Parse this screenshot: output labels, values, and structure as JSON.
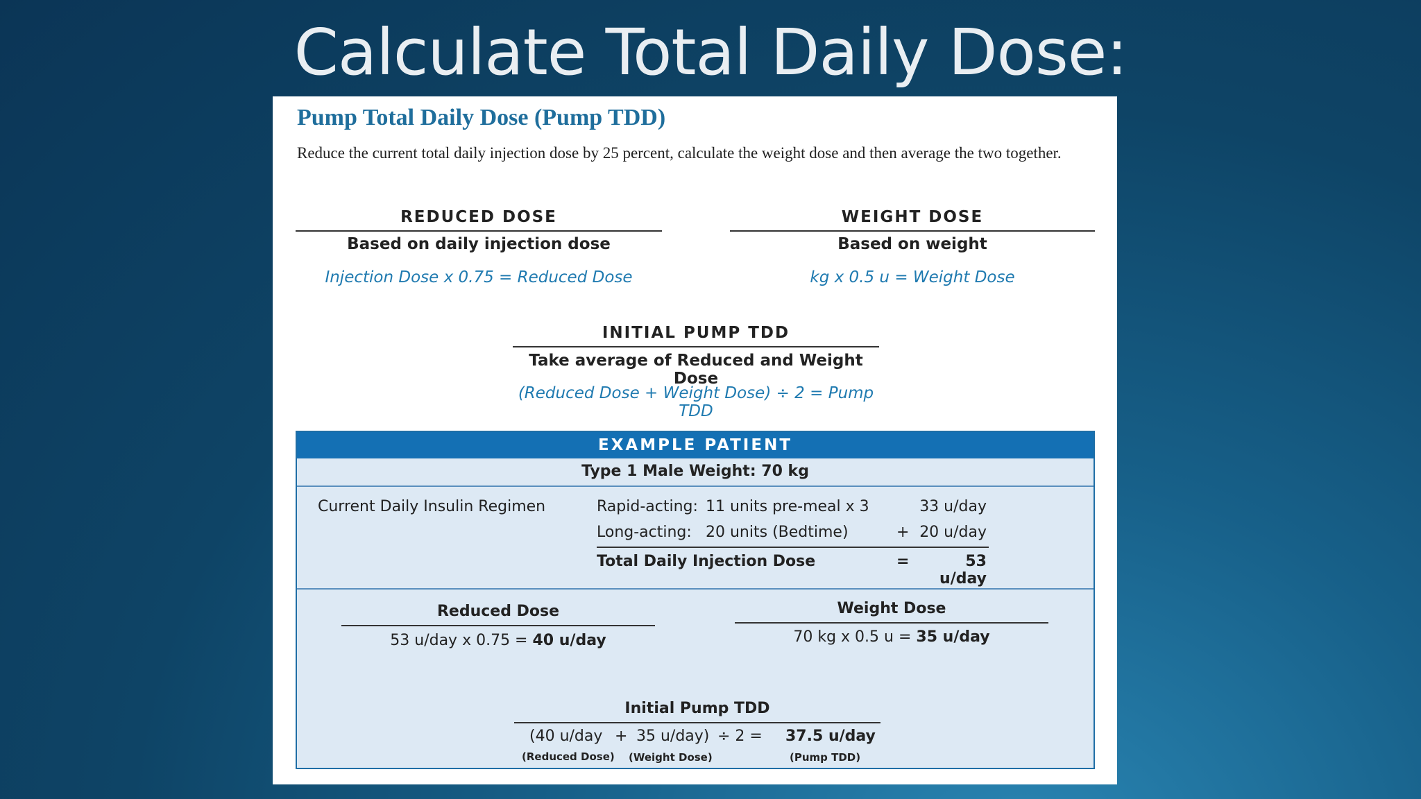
{
  "slide": {
    "title": "Calculate Total Daily Dose:"
  },
  "panel": {
    "title": "Pump Total Daily Dose (Pump TDD)",
    "intro": "Reduce the current total daily injection dose by 25 percent, calculate the weight dose and then average the two together.",
    "reduced": {
      "header": "REDUCED DOSE",
      "subtitle": "Based on daily injection dose",
      "formula": "Injection Dose x 0.75 = Reduced Dose"
    },
    "weight": {
      "header": "WEIGHT DOSE",
      "subtitle": "Based on weight",
      "formula": "kg x 0.5 u = Weight Dose"
    },
    "initial": {
      "header": "INITIAL PUMP TDD",
      "subtitle": "Take average of Reduced and Weight Dose",
      "formula": "(Reduced Dose + Weight Dose) ÷ 2 = Pump TDD"
    }
  },
  "example": {
    "header": "EXAMPLE PATIENT",
    "patient": "Type 1 Male   Weight: 70 kg",
    "regimen_label": "Current Daily Insulin Regimen",
    "rows": [
      {
        "label": "Rapid-acting:",
        "detail": "11 units pre-meal x 3",
        "op": "",
        "value": "33 u/day"
      },
      {
        "label": "Long-acting:",
        "detail": "20 units (Bedtime)",
        "op": "+",
        "value": "20 u/day"
      }
    ],
    "total": {
      "label": "Total Daily Injection Dose",
      "op": "=",
      "value": "53 u/day"
    },
    "reduced": {
      "title": "Reduced Dose",
      "calc": "53 u/day  x  0.75  =",
      "result": "40 u/day"
    },
    "weight": {
      "title": "Weight Dose",
      "calc": "70 kg  x  0.5 u  =",
      "result": "35 u/day"
    },
    "initial": {
      "title": "Initial Pump TDD",
      "a": "(40 u/day",
      "plus": "+",
      "b": "35 u/day)",
      "div": "÷  2  =",
      "result": "37.5 u/day",
      "a_note": "(Reduced Dose)",
      "b_note": "(Weight Dose)",
      "result_note": "(Pump TDD)"
    }
  }
}
